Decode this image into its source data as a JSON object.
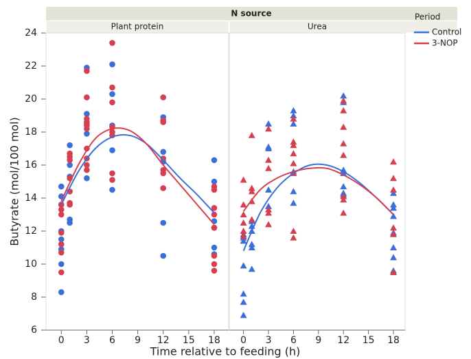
{
  "facet_title": "N source",
  "ylabel": "Butyrate (mol/100 mol)",
  "xlabel": "Time relative to feeding (h)",
  "ylim": [
    6,
    24
  ],
  "yticks": [
    6,
    8,
    10,
    12,
    14,
    16,
    18,
    20,
    22,
    24
  ],
  "legend": {
    "title": "Period",
    "entries": [
      {
        "name": "Control",
        "color": "#3a6fd8"
      },
      {
        "name": "3-NOP",
        "color": "#d6404e"
      }
    ]
  },
  "chart_data": [
    {
      "type": "scatter",
      "title": "Plant protein",
      "marker": "circle",
      "xlim": [
        -1.8,
        19.7
      ],
      "xticks": [
        0,
        3,
        6,
        9,
        12,
        15,
        18
      ],
      "series": [
        {
          "color": "#3a6fd8",
          "x": [
            0,
            0,
            0,
            0,
            0,
            0,
            0,
            0,
            1,
            1,
            1,
            1,
            1,
            3,
            3,
            3,
            3,
            3,
            6,
            6,
            6,
            6,
            6,
            12,
            12,
            12,
            12,
            12,
            18,
            18,
            18,
            18,
            18,
            18
          ],
          "values": [
            14.7,
            14.1,
            13.6,
            12.0,
            11.5,
            10.9,
            10.0,
            8.3,
            17.2,
            16.0,
            15.3,
            12.7,
            12.5,
            21.9,
            19.1,
            18.5,
            17.9,
            15.2,
            22.1,
            20.3,
            18.4,
            16.9,
            14.5,
            18.9,
            16.8,
            16.2,
            12.5,
            10.5,
            16.3,
            15.0,
            12.6,
            12.2,
            11.0,
            10.6
          ]
        },
        {
          "color": "#d6404e",
          "x": [
            0,
            0,
            0,
            0,
            0,
            0,
            0,
            1,
            1,
            1,
            1,
            1,
            1,
            1,
            3,
            3,
            3,
            3,
            3,
            3,
            3,
            3,
            3,
            3,
            6,
            6,
            6,
            6,
            6,
            6,
            6,
            6,
            12,
            12,
            12,
            12,
            12,
            12,
            12,
            18,
            18,
            18,
            18,
            18,
            18,
            18,
            18
          ],
          "values": [
            13.6,
            13.3,
            13.0,
            11.9,
            11.2,
            10.7,
            9.5,
            16.7,
            16.5,
            16.3,
            15.2,
            14.4,
            13.7,
            13.6,
            21.7,
            20.1,
            18.8,
            18.6,
            18.4,
            18.2,
            17.0,
            16.4,
            16.0,
            15.7,
            23.4,
            20.7,
            19.8,
            18.3,
            18.0,
            17.8,
            15.5,
            15.1,
            20.1,
            18.7,
            18.6,
            16.4,
            15.7,
            15.5,
            14.6,
            14.7,
            14.5,
            13.4,
            13.0,
            12.2,
            10.5,
            10.0,
            9.6
          ]
        }
      ],
      "fit_x": [
        0,
        2,
        4,
        6,
        8,
        10,
        12,
        14,
        16,
        18
      ],
      "fits": [
        {
          "color": "#3a6fd8",
          "values": [
            13.6,
            15.6,
            17.0,
            17.7,
            17.8,
            17.3,
            16.3,
            15.2,
            14.2,
            13.1
          ]
        },
        {
          "color": "#d6404e",
          "values": [
            13.8,
            16.0,
            17.6,
            18.2,
            18.1,
            17.3,
            16.0,
            14.8,
            13.6,
            12.4
          ]
        }
      ]
    },
    {
      "type": "scatter",
      "title": "Urea",
      "marker": "triangle",
      "xlim": [
        -1.7,
        19.4
      ],
      "xticks": [
        0,
        3,
        6,
        9,
        12,
        15,
        18
      ],
      "series": [
        {
          "color": "#3a6fd8",
          "x": [
            0,
            0,
            0,
            0,
            0,
            0,
            0,
            1,
            1,
            1,
            1,
            1,
            1,
            3,
            3,
            3,
            3,
            3,
            6,
            6,
            6,
            6,
            6,
            6,
            12,
            12,
            12,
            12,
            12,
            12,
            12,
            18,
            18,
            18,
            18,
            18,
            18,
            18,
            18
          ],
          "values": [
            11.8,
            11.6,
            11.4,
            9.9,
            8.2,
            7.7,
            6.9,
            12.6,
            12.3,
            12.0,
            11.2,
            11.0,
            9.7,
            18.5,
            17.1,
            17.0,
            14.5,
            13.5,
            19.3,
            19.0,
            18.5,
            15.6,
            14.4,
            13.7,
            20.2,
            19.8,
            15.7,
            15.5,
            14.7,
            14.3,
            14.2,
            14.3,
            13.6,
            13.4,
            12.9,
            11.9,
            11.0,
            10.4,
            9.6
          ]
        },
        {
          "color": "#d6404e",
          "x": [
            0,
            0,
            0,
            0,
            0,
            0,
            1,
            1,
            1,
            1,
            1,
            3,
            3,
            3,
            3,
            3,
            3,
            6,
            6,
            6,
            6,
            6,
            6,
            6,
            6,
            12,
            12,
            12,
            12,
            12,
            12,
            12,
            12,
            18,
            18,
            18,
            18,
            18,
            18
          ],
          "values": [
            15.1,
            13.6,
            13.0,
            12.5,
            12.0,
            11.7,
            17.8,
            14.6,
            14.4,
            13.8,
            12.7,
            18.2,
            16.3,
            15.8,
            13.3,
            13.1,
            12.4,
            18.8,
            17.4,
            17.2,
            16.7,
            16.1,
            15.5,
            12.0,
            11.6,
            19.9,
            19.3,
            18.3,
            17.3,
            16.6,
            14.1,
            13.9,
            13.1,
            16.2,
            15.2,
            14.5,
            12.2,
            11.8,
            9.5
          ]
        }
      ],
      "fit_x": [
        0,
        2,
        4,
        6,
        8,
        10,
        12,
        14,
        16,
        18
      ],
      "fits": [
        {
          "color": "#3a6fd8",
          "values": [
            10.8,
            13.1,
            14.6,
            15.5,
            16.0,
            16.0,
            15.6,
            14.9,
            14.0,
            13.0
          ]
        },
        {
          "color": "#d6404e",
          "values": [
            13.2,
            14.5,
            15.2,
            15.6,
            15.8,
            15.8,
            15.4,
            14.8,
            14.0,
            13.0
          ]
        }
      ]
    }
  ]
}
